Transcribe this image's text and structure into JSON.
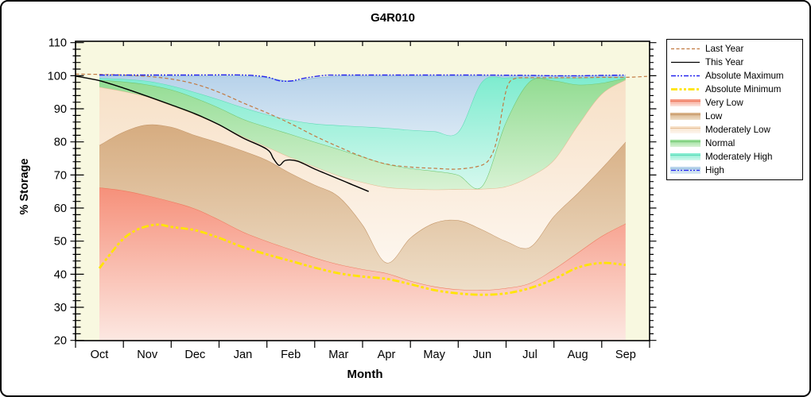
{
  "title": "G4R010",
  "axes": {
    "x_label": "Month",
    "y_label": "% Storage",
    "y_ticks": [
      20,
      30,
      40,
      50,
      60,
      70,
      80,
      90,
      100,
      110
    ],
    "y_min": 20,
    "y_max": 110
  },
  "colors": {
    "plot_bg": "#f8f8e0",
    "figure_bg": "#ffffff",
    "axis": "#000000",
    "last_year": "#c27a42",
    "this_year": "#000000",
    "absolute_maximum": "#2424ee",
    "absolute_minimum": "#ffe400"
  },
  "legend": {
    "items": [
      {
        "label": "Last Year",
        "type": "line",
        "color": "#c27a42",
        "width": 1.2,
        "dash": "4 2.5"
      },
      {
        "label": "This Year",
        "type": "line",
        "color": "#000000",
        "width": 1.2,
        "dash": ""
      },
      {
        "label": "Absolute Maximum",
        "type": "line",
        "color": "#2424ee",
        "width": 1.4,
        "dash": "6 2 2 2 2 2"
      },
      {
        "label": "Absolute Minimum",
        "type": "line",
        "color": "#ffe400",
        "width": 2.8,
        "dash": "8 2.5 3 2.5 3 2.5"
      },
      {
        "label": "Very Low",
        "type": "band",
        "color": "#f6907a",
        "fade": "#fce8e2",
        "edge": "#ee7a5e"
      },
      {
        "label": "Low",
        "type": "band",
        "color": "#d6ac80",
        "fade": "#eedec8",
        "edge": "#c49668"
      },
      {
        "label": "Moderately Low",
        "type": "band",
        "color": "#f7e0c6",
        "fade": "#fdf6ee",
        "edge": "#e4bc94"
      },
      {
        "label": "Normal",
        "type": "band",
        "color": "#92dc92",
        "fade": "#d8f2d4",
        "edge": "#72c872"
      },
      {
        "label": "Moderately High",
        "type": "band",
        "color": "#7deccf",
        "fade": "#d6f8ee",
        "edge": "#5edab6"
      },
      {
        "label": "High",
        "type": "band+line",
        "color": "#b7d2ea",
        "fade": "#d8e8f4",
        "edge": "#9cc2e0",
        "line_color": "#2424ee",
        "dash": "6 2 2 2 2 2"
      }
    ]
  },
  "chart_data": {
    "type": "area",
    "title": "G4R010",
    "xlabel": "Month",
    "ylabel": "% Storage",
    "categories": [
      "Oct",
      "Nov",
      "Dec",
      "Jan",
      "Feb",
      "Mar",
      "Apr",
      "May",
      "Jun",
      "Jul",
      "Aug",
      "Sep"
    ],
    "ylim": [
      20,
      110
    ],
    "grid": false,
    "legend_position": "right",
    "note": "Stacked percentile bands of % storage by month; band arrays give the TOP boundary of each band sampled every half month Oct..Sep (23 points); lines are [month_index, value] pairs, month_index 0=Oct .. 11=Sep",
    "bands": [
      {
        "name": "Very Low",
        "base": 20,
        "color": "#f6907a",
        "fade": "#fce8e2",
        "edge": "#ee7a5e",
        "values": [
          66.2,
          65.3,
          63.8,
          62.0,
          59.8,
          56.5,
          52.8,
          50.0,
          47.5,
          45.0,
          43.0,
          41.5,
          40.3,
          38.0,
          36.3,
          35.4,
          35.2,
          35.8,
          37.3,
          41.5,
          46.5,
          51.5,
          55.3
        ]
      },
      {
        "name": "Low",
        "color": "#d6ac80",
        "fade": "#eedec8",
        "edge": "#c49668",
        "values": [
          79.0,
          83.0,
          85.2,
          84.5,
          82.0,
          79.8,
          77.3,
          74.5,
          70.5,
          67.0,
          63.5,
          55.0,
          43.5,
          51.0,
          55.5,
          56.3,
          53.5,
          50.0,
          48.2,
          57.5,
          64.5,
          72.0,
          80.0
        ]
      },
      {
        "name": "Moderately Low",
        "color": "#f7e0c6",
        "fade": "#fdf6ee",
        "edge": "#e4bc94",
        "values": [
          96.6,
          95.3,
          93.6,
          91.0,
          88.3,
          85.2,
          81.6,
          78.5,
          75.3,
          72.5,
          69.8,
          67.8,
          66.3,
          65.8,
          65.6,
          65.7,
          65.8,
          66.5,
          69.5,
          74.5,
          85.0,
          94.5,
          98.8
        ]
      },
      {
        "name": "Normal",
        "color": "#92dc92",
        "fade": "#d8f2d4",
        "edge": "#72c872",
        "values": [
          98.7,
          98.2,
          97.3,
          95.8,
          93.3,
          90.3,
          86.9,
          84.5,
          82.3,
          80.0,
          77.8,
          75.5,
          73.3,
          72.0,
          71.2,
          70.0,
          66.6,
          86.0,
          98.3,
          98.5,
          97.3,
          97.8,
          99.3
        ]
      },
      {
        "name": "Moderately High",
        "color": "#7deccf",
        "fade": "#d6f8ee",
        "edge": "#5edab6",
        "values": [
          99.3,
          99.0,
          98.4,
          97.0,
          95.0,
          92.8,
          90.4,
          88.3,
          86.6,
          85.5,
          85.0,
          84.6,
          84.2,
          83.6,
          83.2,
          83.0,
          98.2,
          99.4,
          99.4,
          99.4,
          99.4,
          99.5,
          99.6
        ]
      },
      {
        "name": "High",
        "color": "#b7d2ea",
        "fade": "#d8e8f4",
        "edge": "#9cc2e0",
        "values": [
          99.9,
          99.9,
          99.9,
          99.9,
          99.9,
          99.9,
          99.9,
          99.4,
          98.3,
          99.3,
          99.9,
          99.9,
          99.9,
          99.9,
          99.9,
          99.9,
          99.9,
          99.9,
          99.9,
          99.9,
          99.9,
          99.9,
          99.9
        ]
      }
    ],
    "lines": [
      {
        "name": "Absolute Minimum",
        "color": "#ffe400",
        "width": 2.8,
        "dash": "9 3 3.5 3 3.5 3",
        "points": [
          [
            0,
            41.8
          ],
          [
            0.25,
            46.5
          ],
          [
            0.5,
            50.7
          ],
          [
            0.75,
            53.2
          ],
          [
            1,
            54.5
          ],
          [
            1.25,
            55.0
          ],
          [
            1.5,
            54.3
          ],
          [
            2,
            53.3
          ],
          [
            2.5,
            51.0
          ],
          [
            3,
            48.2
          ],
          [
            3.5,
            46.0
          ],
          [
            4,
            44.0
          ],
          [
            4.5,
            42.0
          ],
          [
            5,
            40.3
          ],
          [
            5.5,
            39.3
          ],
          [
            6,
            38.6
          ],
          [
            6.5,
            37.0
          ],
          [
            7,
            35.2
          ],
          [
            7.5,
            34.2
          ],
          [
            8,
            33.8
          ],
          [
            8.5,
            34.2
          ],
          [
            9,
            35.8
          ],
          [
            9.5,
            38.5
          ],
          [
            10,
            42.0
          ],
          [
            10.5,
            43.4
          ],
          [
            11,
            42.8
          ]
        ]
      },
      {
        "name": "Last Year",
        "color": "#c27a42",
        "width": 1.2,
        "dash": "4.5 3",
        "points": [
          [
            -0.5,
            100.5
          ],
          [
            0,
            100.4
          ],
          [
            0.5,
            100.2
          ],
          [
            1,
            99.8
          ],
          [
            1.5,
            99.0
          ],
          [
            2,
            97.5
          ],
          [
            2.5,
            95.0
          ],
          [
            3,
            91.8
          ],
          [
            3.5,
            88.8
          ],
          [
            4,
            85.5
          ],
          [
            4.5,
            81.8
          ],
          [
            5,
            78.5
          ],
          [
            5.5,
            75.5
          ],
          [
            6,
            73.3
          ],
          [
            6.5,
            72.4
          ],
          [
            7,
            72.0
          ],
          [
            7.5,
            71.8
          ],
          [
            8,
            73.0
          ],
          [
            8.2,
            76.0
          ],
          [
            8.33,
            82.0
          ],
          [
            8.45,
            92.0
          ],
          [
            8.55,
            97.5
          ],
          [
            8.7,
            99.2
          ],
          [
            9,
            99.4
          ],
          [
            9.5,
            99.4
          ],
          [
            10,
            99.4
          ],
          [
            10.5,
            99.5
          ],
          [
            11,
            99.5
          ],
          [
            11.45,
            99.8
          ]
        ]
      },
      {
        "name": "Absolute Maximum",
        "color": "#2424ee",
        "width": 1.4,
        "dash": "7 2 2 2 2 2",
        "points": [
          [
            0,
            100.2
          ],
          [
            1,
            100.2
          ],
          [
            2,
            100.2
          ],
          [
            3,
            100.2
          ],
          [
            3.5,
            99.6
          ],
          [
            3.75,
            98.5
          ],
          [
            4,
            98.4
          ],
          [
            4.3,
            99.3
          ],
          [
            4.7,
            100.1
          ],
          [
            5,
            100.2
          ],
          [
            6,
            100.2
          ],
          [
            7,
            100.2
          ],
          [
            8,
            100.2
          ],
          [
            9,
            100.1
          ],
          [
            9.5,
            100.0
          ],
          [
            10,
            100.0
          ],
          [
            10.5,
            100.1
          ],
          [
            11,
            100.2
          ]
        ]
      },
      {
        "name": "This Year",
        "color": "#000000",
        "width": 1.4,
        "dash": "",
        "points": [
          [
            -0.5,
            99.9
          ],
          [
            0,
            98.5
          ],
          [
            0.5,
            96.3
          ],
          [
            1,
            93.8
          ],
          [
            1.5,
            91.2
          ],
          [
            2,
            88.5
          ],
          [
            2.5,
            85.2
          ],
          [
            3,
            81.2
          ],
          [
            3.5,
            77.8
          ],
          [
            3.64,
            74.9
          ],
          [
            3.76,
            72.9
          ],
          [
            3.89,
            74.4
          ],
          [
            4.14,
            74.2
          ],
          [
            4.5,
            71.8
          ],
          [
            5,
            68.8
          ],
          [
            5.33,
            66.8
          ],
          [
            5.63,
            65.0
          ]
        ]
      }
    ]
  }
}
